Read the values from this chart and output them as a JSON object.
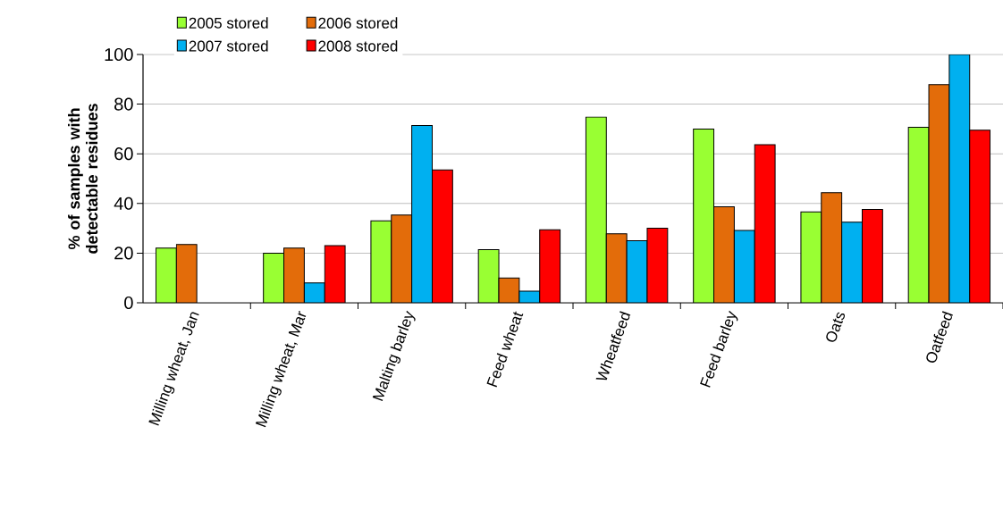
{
  "chart_data": {
    "type": "bar",
    "ylabel": "% of samples with detectable residues",
    "categories": [
      "Milling wheat, Jan",
      "Milling wheat, Mar",
      "Malting barley",
      "Feed wheat",
      "Wheatfeed",
      "Feed barley",
      "Oats",
      "Oatfeed"
    ],
    "series": [
      {
        "name": "2005 stored",
        "color": "#99ff33",
        "values": [
          22,
          20,
          33,
          21.4,
          74.8,
          70,
          36.6,
          70.7
        ]
      },
      {
        "name": "2006 stored",
        "color": "#e36c0a",
        "values": [
          23.5,
          22,
          35.3,
          10,
          27.8,
          38.7,
          44.3,
          87.9
        ]
      },
      {
        "name": "2007 stored",
        "color": "#00b0f0",
        "values": [
          null,
          8,
          71.4,
          4.7,
          25,
          29.1,
          32.5,
          100
        ]
      },
      {
        "name": "2008 stored",
        "color": "#ff0000",
        "values": [
          null,
          23,
          53.5,
          29.4,
          30,
          63.7,
          37.6,
          69.5
        ]
      }
    ],
    "ylim": [
      0,
      100
    ],
    "yticks": [
      0,
      20,
      40,
      60,
      80,
      100
    ],
    "grid": "y",
    "legend": "top left"
  }
}
